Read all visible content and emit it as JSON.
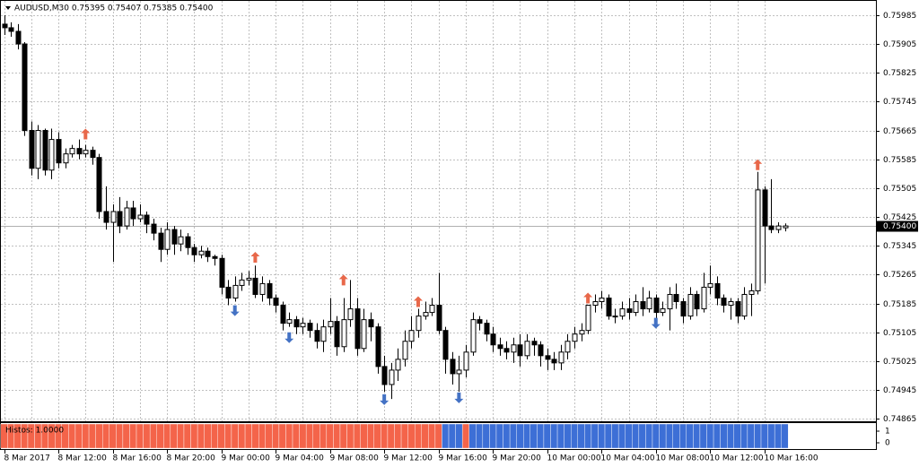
{
  "chart_data": {
    "type": "candlestick",
    "title": "AUDUSD,M30  0.75395 0.75407 0.75385 0.75400",
    "categories": [
      "8 Mar 2017",
      null,
      null,
      null,
      null,
      null,
      null,
      null,
      "8 Mar 12:00",
      null,
      null,
      null,
      null,
      null,
      null,
      null,
      "8 Mar 16:00",
      null,
      null,
      null,
      null,
      null,
      null,
      null,
      "8 Mar 20:00",
      null,
      null,
      null,
      null,
      null,
      null,
      null,
      "9 Mar 00:00",
      null,
      null,
      null,
      null,
      null,
      null,
      null,
      "9 Mar 04:00",
      null,
      null,
      null,
      null,
      null,
      null,
      null,
      "9 Mar 08:00",
      null,
      null,
      null,
      null,
      null,
      null,
      null,
      "9 Mar 12:00",
      null,
      null,
      null,
      null,
      null,
      null,
      null,
      "9 Mar 16:00",
      null,
      null,
      null,
      null,
      null,
      null,
      null,
      "9 Mar 20:00",
      null,
      null,
      null,
      null,
      null,
      null,
      null,
      "10 Mar 00:00",
      null,
      null,
      null,
      null,
      null,
      null,
      null,
      "10 Mar 04:00",
      null,
      null,
      null,
      null,
      null,
      null,
      null,
      "10 Mar 08:00",
      null,
      null,
      null,
      null,
      null,
      null,
      null,
      "10 Mar 12:00",
      null,
      null,
      null,
      null,
      null,
      null,
      null,
      "10 Mar 16:00",
      null,
      null,
      null
    ],
    "open": [
      0.7596,
      0.7595,
      0.7594,
      0.75905,
      0.75665,
      0.7556,
      0.75665,
      0.75555,
      0.7564,
      0.75575,
      0.756,
      0.75615,
      0.756,
      0.7561,
      0.7559,
      0.7544,
      0.7541,
      0.7544,
      0.754,
      0.7545,
      0.7542,
      0.7543,
      0.75405,
      0.7538,
      0.75335,
      0.7539,
      0.7535,
      0.7537,
      0.7534,
      0.7532,
      0.7533,
      0.75315,
      0.7531,
      0.7523,
      0.752,
      0.75235,
      0.7525,
      0.75255,
      0.7521,
      0.7524,
      0.752,
      0.7518,
      0.7513,
      0.7514,
      0.7512,
      0.7513,
      0.7511,
      0.7508,
      0.7512,
      0.75135,
      0.75065,
      0.7514,
      0.7517,
      0.7506,
      0.7514,
      0.7512,
      0.7501,
      0.7496,
      0.75,
      0.7503,
      0.7508,
      0.7511,
      0.7515,
      0.7516,
      0.7518,
      0.7511,
      0.7503,
      0.7499,
      0.75,
      0.7505,
      0.7514,
      0.7513,
      0.751,
      0.7507,
      0.7506,
      0.7505,
      0.7507,
      0.7504,
      0.7508,
      0.7507,
      0.7504,
      0.7503,
      0.7502,
      0.7505,
      0.7508,
      0.751,
      0.7511,
      0.7518,
      0.7519,
      0.752,
      0.7515,
      0.7515,
      0.7517,
      0.7516,
      0.7519,
      0.7517,
      0.752,
      0.7516,
      0.7517,
      0.7521,
      0.7519,
      0.7515,
      0.7521,
      0.7517,
      0.7523,
      0.7524,
      0.752,
      0.7518,
      0.7519,
      0.7515,
      0.7521,
      0.7522,
      0.755,
      0.754,
      0.7539,
      0.75395
    ],
    "high": [
      0.75985,
      0.75965,
      0.7596,
      0.7591,
      0.7569,
      0.7568,
      0.7567,
      0.7567,
      0.7566,
      0.75615,
      0.75625,
      0.7564,
      0.75625,
      0.7562,
      0.756,
      0.7551,
      0.7546,
      0.7548,
      0.7547,
      0.7547,
      0.7546,
      0.7544,
      0.7542,
      0.75395,
      0.7541,
      0.754,
      0.7539,
      0.7538,
      0.7535,
      0.75345,
      0.7534,
      0.7532,
      0.7532,
      0.7525,
      0.7526,
      0.7527,
      0.75275,
      0.7529,
      0.7526,
      0.7525,
      0.7521,
      0.7519,
      0.7516,
      0.7515,
      0.75145,
      0.7514,
      0.7513,
      0.7514,
      0.752,
      0.7515,
      0.752,
      0.7525,
      0.752,
      0.7517,
      0.7516,
      0.7513,
      0.7504,
      0.7502,
      0.7506,
      0.7511,
      0.7515,
      0.7517,
      0.7519,
      0.752,
      0.7527,
      0.7512,
      0.7505,
      0.7504,
      0.7507,
      0.7516,
      0.7515,
      0.7514,
      0.7512,
      0.7509,
      0.7508,
      0.7509,
      0.751,
      0.751,
      0.7509,
      0.7508,
      0.7506,
      0.7505,
      0.7507,
      0.751,
      0.7512,
      0.7513,
      0.7518,
      0.7521,
      0.7522,
      0.7521,
      0.7517,
      0.7519,
      0.752,
      0.7521,
      0.7523,
      0.7522,
      0.7521,
      0.7519,
      0.7523,
      0.7524,
      0.752,
      0.7523,
      0.7522,
      0.7527,
      0.7529,
      0.7526,
      0.7521,
      0.752,
      0.752,
      0.7523,
      0.7524,
      0.7555,
      0.7551,
      0.7553,
      0.7541,
      0.75407
    ],
    "low": [
      0.7593,
      0.75925,
      0.7589,
      0.7565,
      0.7554,
      0.7553,
      0.7554,
      0.7553,
      0.7556,
      0.7556,
      0.7559,
      0.75585,
      0.7559,
      0.7557,
      0.7542,
      0.7539,
      0.753,
      0.7538,
      0.7539,
      0.754,
      0.7541,
      0.7538,
      0.7536,
      0.753,
      0.7532,
      0.7532,
      0.7533,
      0.7532,
      0.753,
      0.7531,
      0.753,
      0.7529,
      0.7521,
      0.7518,
      0.7519,
      0.7522,
      0.75235,
      0.752,
      0.7519,
      0.7518,
      0.7516,
      0.7511,
      0.7512,
      0.751,
      0.751,
      0.7509,
      0.7506,
      0.7505,
      0.751,
      0.7504,
      0.7505,
      0.7512,
      0.7504,
      0.7505,
      0.7508,
      0.7499,
      0.7494,
      0.7492,
      0.7497,
      0.7501,
      0.7506,
      0.7509,
      0.7514,
      0.7515,
      0.751,
      0.7499,
      0.7496,
      0.7494,
      0.7498,
      0.7504,
      0.7511,
      0.7508,
      0.7505,
      0.7504,
      0.7503,
      0.7502,
      0.7501,
      0.7503,
      0.7504,
      0.7501,
      0.75,
      0.75,
      0.75,
      0.7503,
      0.7506,
      0.7508,
      0.751,
      0.7516,
      0.7517,
      0.7514,
      0.7513,
      0.7514,
      0.7514,
      0.7515,
      0.7515,
      0.7516,
      0.7514,
      0.7515,
      0.7511,
      0.7517,
      0.7513,
      0.7514,
      0.7515,
      0.7516,
      0.7521,
      0.7518,
      0.7516,
      0.7514,
      0.7513,
      0.7514,
      0.7515,
      0.7521,
      0.7524,
      0.7538,
      0.7538,
      0.75385
    ],
    "close": [
      0.7595,
      0.7594,
      0.75905,
      0.75665,
      0.7556,
      0.75665,
      0.75555,
      0.7564,
      0.75575,
      0.756,
      0.75615,
      0.756,
      0.7561,
      0.7559,
      0.7544,
      0.7541,
      0.7544,
      0.754,
      0.7545,
      0.7542,
      0.7543,
      0.75405,
      0.7538,
      0.75335,
      0.7539,
      0.7535,
      0.7537,
      0.7534,
      0.7532,
      0.7533,
      0.75315,
      0.7531,
      0.7523,
      0.752,
      0.75235,
      0.7525,
      0.75255,
      0.7521,
      0.7524,
      0.752,
      0.7518,
      0.7513,
      0.7514,
      0.7512,
      0.7513,
      0.7511,
      0.7508,
      0.7512,
      0.75135,
      0.75065,
      0.7514,
      0.7517,
      0.7506,
      0.7514,
      0.7512,
      0.7501,
      0.7496,
      0.75,
      0.7503,
      0.7508,
      0.7511,
      0.7515,
      0.7516,
      0.7518,
      0.7511,
      0.7503,
      0.7499,
      0.75,
      0.7505,
      0.7514,
      0.7513,
      0.751,
      0.7507,
      0.7506,
      0.7505,
      0.7507,
      0.7504,
      0.7508,
      0.7507,
      0.7504,
      0.7503,
      0.7502,
      0.7505,
      0.7508,
      0.751,
      0.7511,
      0.7518,
      0.7519,
      0.752,
      0.7515,
      0.7515,
      0.7517,
      0.7516,
      0.7519,
      0.7517,
      0.752,
      0.7516,
      0.7517,
      0.7521,
      0.7519,
      0.7515,
      0.7521,
      0.7517,
      0.7523,
      0.7524,
      0.752,
      0.7518,
      0.7519,
      0.7515,
      0.7521,
      0.7522,
      0.755,
      0.754,
      0.7539,
      0.754,
      0.754
    ],
    "bull_color": "#ffffff",
    "bear_color": "#000000",
    "outline_color": "#000000",
    "ylim": [
      0.74858,
      0.76022
    ],
    "yticks": [
      0.75985,
      0.75905,
      0.75825,
      0.75745,
      0.75665,
      0.75585,
      0.75505,
      0.75425,
      0.75345,
      0.75265,
      0.75185,
      0.75105,
      0.75025,
      0.74945,
      0.74865
    ],
    "grid": true,
    "current_price": {
      "value": 0.754,
      "label": "0.75400"
    },
    "sell_arrows": {
      "color": "#e8684a",
      "points": [
        {
          "bar": 12,
          "price": 0.75655
        },
        {
          "bar": 37,
          "price": 0.75313
        },
        {
          "bar": 50,
          "price": 0.7525
        },
        {
          "bar": 61,
          "price": 0.7519
        },
        {
          "bar": 86,
          "price": 0.752
        },
        {
          "bar": 111,
          "price": 0.7557
        }
      ]
    },
    "buy_arrows": {
      "color": "#4472c4",
      "points": [
        {
          "bar": 34,
          "price": 0.75165
        },
        {
          "bar": 42,
          "price": 0.7509
        },
        {
          "bar": 56,
          "price": 0.74918
        },
        {
          "bar": 67,
          "price": 0.74923
        },
        {
          "bar": 96,
          "price": 0.7513
        }
      ]
    },
    "histogram": {
      "label": "Histos: 1.0000",
      "ylim": [
        0,
        1
      ],
      "yticks": [
        1,
        0
      ],
      "series": [
        {
          "color": "#f4644a",
          "values": [
            1,
            1,
            1,
            1,
            1,
            1,
            1,
            1,
            1,
            1,
            1,
            1,
            1,
            1,
            1,
            1,
            1,
            1,
            1,
            1,
            1,
            1,
            1,
            1,
            1,
            1,
            1,
            1,
            1,
            1,
            1,
            1,
            1,
            1,
            1,
            1,
            1,
            1,
            1,
            1,
            1,
            1,
            1,
            1,
            1,
            1,
            1,
            1,
            1,
            1,
            1,
            1,
            1,
            1,
            1,
            1,
            1,
            1,
            1,
            1,
            1,
            1,
            1,
            1,
            1,
            0,
            0,
            0,
            1,
            0,
            0,
            0,
            0,
            0,
            0,
            0,
            0,
            0,
            0,
            0,
            0,
            0,
            0,
            0,
            0,
            0,
            0,
            0,
            0,
            0,
            0,
            0,
            0,
            0,
            0,
            0,
            0,
            0,
            0,
            0,
            0,
            0,
            0,
            0,
            0,
            0,
            0,
            0,
            0,
            0,
            0,
            0,
            0,
            0,
            0,
            0
          ]
        },
        {
          "color": "#3d6fd6",
          "values": [
            0,
            0,
            0,
            0,
            0,
            0,
            0,
            0,
            0,
            0,
            0,
            0,
            0,
            0,
            0,
            0,
            0,
            0,
            0,
            0,
            0,
            0,
            0,
            0,
            0,
            0,
            0,
            0,
            0,
            0,
            0,
            0,
            0,
            0,
            0,
            0,
            0,
            0,
            0,
            0,
            0,
            0,
            0,
            0,
            0,
            0,
            0,
            0,
            0,
            0,
            0,
            0,
            0,
            0,
            0,
            0,
            0,
            0,
            0,
            0,
            0,
            0,
            0,
            0,
            0,
            1,
            1,
            1,
            0,
            1,
            1,
            1,
            1,
            1,
            1,
            1,
            1,
            1,
            1,
            1,
            1,
            1,
            1,
            1,
            1,
            1,
            1,
            1,
            1,
            1,
            1,
            1,
            1,
            1,
            1,
            1,
            1,
            1,
            1,
            1,
            1,
            1,
            1,
            1,
            1,
            1,
            1,
            1,
            1,
            1,
            1,
            1,
            1,
            1,
            1,
            1
          ]
        }
      ]
    }
  }
}
